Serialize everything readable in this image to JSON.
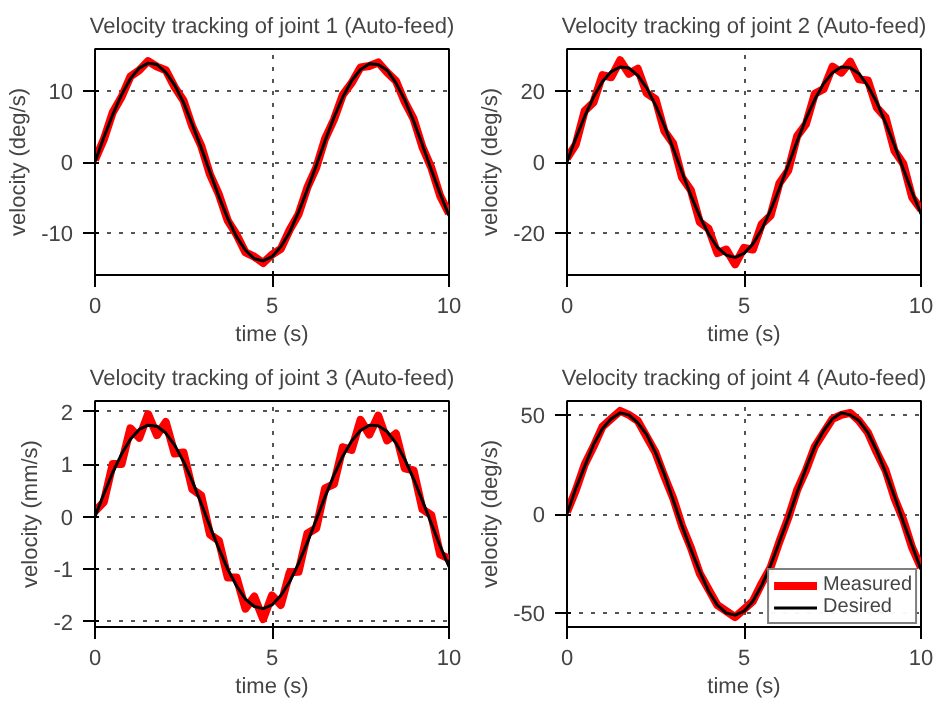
{
  "chart_data": [
    {
      "type": "line",
      "title": "Velocity tracking of joint 1 (Auto-feed)",
      "xlabel": "time (s)",
      "ylabel": "velocity (deg/s)",
      "x": [
        0,
        0.25,
        0.5,
        0.75,
        1,
        1.25,
        1.5,
        1.75,
        2,
        2.25,
        2.5,
        2.75,
        3,
        3.25,
        3.5,
        3.75,
        4,
        4.25,
        4.5,
        4.75,
        5,
        5.25,
        5.5,
        5.75,
        6,
        6.25,
        6.5,
        6.75,
        7,
        7.25,
        7.5,
        7.75,
        8,
        8.25,
        8.5,
        8.75,
        9,
        9.25,
        9.5,
        9.75,
        10
      ],
      "xlim": [
        0,
        10
      ],
      "xticks": [
        0,
        5,
        10
      ],
      "ylim": [
        -16,
        16
      ],
      "yticks": [
        -10,
        0,
        10
      ],
      "grid": true,
      "series": [
        {
          "color": "#ff0000",
          "values": [
            0.3,
            3.2,
            7.0,
            9.2,
            12.1,
            13.0,
            14.3,
            13.5,
            13.0,
            10.6,
            8.7,
            5.0,
            2.3,
            -1.8,
            -4.6,
            -8.3,
            -10.3,
            -12.8,
            -13.4,
            -14.3,
            -13.1,
            -12.3,
            -9.6,
            -7.4,
            -3.6,
            -0.8,
            3.3,
            6.0,
            9.5,
            11.2,
            13.4,
            13.6,
            14.1,
            12.7,
            11.5,
            8.5,
            6.1,
            2.1,
            -0.8,
            -4.8,
            -7.3
          ]
        },
        {
          "color": "#000000",
          "values": [
            0,
            3.5,
            6.7,
            9.5,
            11.8,
            13.3,
            14.0,
            13.8,
            12.7,
            10.9,
            8.4,
            5.3,
            2.0,
            -1.5,
            -4.9,
            -8.0,
            -10.6,
            -12.5,
            -13.7,
            -14.0,
            -13.4,
            -12.0,
            -9.9,
            -7.1,
            -3.9,
            -0.5,
            3.0,
            6.3,
            9.2,
            11.5,
            13.1,
            13.9,
            13.8,
            13.0,
            11.2,
            8.8,
            5.8,
            2.4,
            -1.1,
            -4.5,
            -7.6
          ]
        }
      ]
    },
    {
      "type": "line",
      "title": "Velocity tracking of joint 2 (Auto-feed)",
      "xlabel": "time (s)",
      "ylabel": "velocity (deg/s)",
      "x": [
        0,
        0.25,
        0.5,
        0.75,
        1,
        1.25,
        1.5,
        1.75,
        2,
        2.25,
        2.5,
        2.75,
        3,
        3.25,
        3.5,
        3.75,
        4,
        4.25,
        4.5,
        4.75,
        5,
        5.25,
        5.5,
        5.75,
        6,
        6.25,
        6.5,
        6.75,
        7,
        7.25,
        7.5,
        7.75,
        8,
        8.25,
        8.5,
        8.75,
        9,
        9.25,
        9.5,
        9.75,
        10
      ],
      "xlim": [
        0,
        10
      ],
      "xticks": [
        0,
        5,
        10
      ],
      "ylim": [
        -32,
        32
      ],
      "yticks": [
        -20,
        0,
        20
      ],
      "grid": true,
      "series": [
        {
          "color": "#ff0000",
          "values": [
            1.0,
            5.0,
            14.5,
            16.9,
            24.6,
            24.0,
            28.8,
            25.0,
            26.4,
            19.5,
            17.8,
            8.8,
            5.2,
            -4.4,
            -8.0,
            -17.0,
            -18.9,
            -25.8,
            -24.8,
            -29.0,
            -24.3,
            -24.8,
            -17.6,
            -15.2,
            -6.0,
            -2.4,
            7.3,
            10.7,
            19.3,
            20.7,
            27.0,
            25.3,
            28.4,
            23.4,
            23.1,
            15.4,
            12.6,
            3.2,
            -0.5,
            -10.0,
            -13.4
          ]
        },
        {
          "color": "#000000",
          "values": [
            0,
            6.7,
            12.9,
            18.4,
            22.7,
            25.6,
            26.9,
            26.6,
            24.5,
            21.0,
            16.1,
            10.3,
            3.8,
            -2.9,
            -9.5,
            -15.4,
            -20.4,
            -24.2,
            -26.4,
            -27.0,
            -25.9,
            -23.2,
            -19.1,
            -13.7,
            -7.5,
            -0.9,
            5.8,
            12.2,
            17.7,
            22.2,
            25.3,
            26.9,
            26.7,
            25.0,
            21.5,
            16.9,
            11.1,
            4.7,
            -2.0,
            -8.6,
            -14.7
          ]
        }
      ]
    },
    {
      "type": "line",
      "title": "Velocity tracking of joint 3 (Auto-feed)",
      "xlabel": "time (s)",
      "ylabel": "velocity (mm/s)",
      "x": [
        0,
        0.25,
        0.5,
        0.75,
        1,
        1.25,
        1.5,
        1.75,
        2,
        2.25,
        2.5,
        2.75,
        3,
        3.25,
        3.5,
        3.75,
        4,
        4.25,
        4.5,
        4.75,
        5,
        5.25,
        5.5,
        5.75,
        6,
        6.25,
        6.5,
        6.75,
        7,
        7.25,
        7.5,
        7.75,
        8,
        8.25,
        8.5,
        8.75,
        9,
        9.25,
        9.5,
        9.75,
        10
      ],
      "xlim": [
        0,
        10
      ],
      "xticks": [
        0,
        5,
        10
      ],
      "ylim": [
        -2.1,
        2.2
      ],
      "yticks": [
        -2,
        -1,
        0,
        1,
        2
      ],
      "grid": true,
      "series": [
        {
          "color": "#ff0000",
          "values": [
            0.1,
            0.28,
            1.0,
            1.0,
            1.68,
            1.5,
            1.95,
            1.55,
            1.8,
            1.2,
            1.22,
            0.52,
            0.4,
            -0.34,
            -0.46,
            -1.16,
            -1.16,
            -1.75,
            -1.52,
            -1.95,
            -1.5,
            -1.68,
            -1.06,
            -1.05,
            -0.32,
            -0.22,
            0.54,
            0.62,
            1.32,
            1.27,
            1.84,
            1.56,
            1.92,
            1.45,
            1.58,
            0.92,
            0.88,
            0.14,
            0.03,
            -0.72,
            -0.8
          ]
        },
        {
          "color": "#000000",
          "values": [
            0,
            0.43,
            0.84,
            1.19,
            1.47,
            1.66,
            1.74,
            1.72,
            1.59,
            1.36,
            1.05,
            0.67,
            0.25,
            -0.19,
            -0.61,
            -1.0,
            -1.32,
            -1.57,
            -1.71,
            -1.75,
            -1.68,
            -1.5,
            -1.24,
            -0.89,
            -0.49,
            -0.06,
            0.38,
            0.79,
            1.15,
            1.44,
            1.64,
            1.74,
            1.73,
            1.62,
            1.4,
            1.09,
            0.72,
            0.3,
            -0.13,
            -0.56,
            -0.95
          ]
        }
      ]
    },
    {
      "type": "line",
      "title": "Velocity tracking of joint 4 (Auto-feed)",
      "xlabel": "time (s)",
      "ylabel": "velocity (deg/s)",
      "x": [
        0,
        0.25,
        0.5,
        0.75,
        1,
        1.25,
        1.5,
        1.75,
        2,
        2.25,
        2.5,
        2.75,
        3,
        3.25,
        3.5,
        3.75,
        4,
        4.25,
        4.5,
        4.75,
        5,
        5.25,
        5.5,
        5.75,
        6,
        6.25,
        6.5,
        6.75,
        7,
        7.25,
        7.5,
        7.75,
        8,
        8.25,
        8.5,
        8.75,
        9,
        9.25,
        9.5,
        9.75,
        10
      ],
      "xlim": [
        0,
        10
      ],
      "xticks": [
        0,
        5,
        10
      ],
      "ylim": [
        -57,
        57
      ],
      "yticks": [
        -50,
        0,
        50
      ],
      "grid": true,
      "legend": "bottom right",
      "series": [
        {
          "name": "Measured",
          "color": "#ff0000",
          "values": [
            1,
            12,
            25,
            34,
            44,
            48,
            52,
            50,
            47,
            39,
            31,
            19,
            8,
            -6,
            -17,
            -30,
            -38,
            -46,
            -49,
            -52,
            -48,
            -44,
            -35,
            -27,
            -14,
            -2,
            12,
            22,
            34,
            41,
            48,
            50,
            51,
            47,
            41,
            31,
            22,
            8,
            -3,
            -17,
            -27
          ]
        },
        {
          "name": "Desired",
          "color": "#000000",
          "values": [
            0,
            13,
            24,
            35,
            43,
            48,
            51,
            50,
            46,
            40,
            31,
            20,
            7,
            -6,
            -18,
            -29,
            -39,
            -46,
            -50,
            -51,
            -49,
            -44,
            -36,
            -26,
            -14,
            -2,
            11,
            23,
            34,
            42,
            48,
            51,
            50,
            47,
            41,
            32,
            21,
            9,
            -4,
            -16,
            -28
          ]
        }
      ]
    }
  ]
}
